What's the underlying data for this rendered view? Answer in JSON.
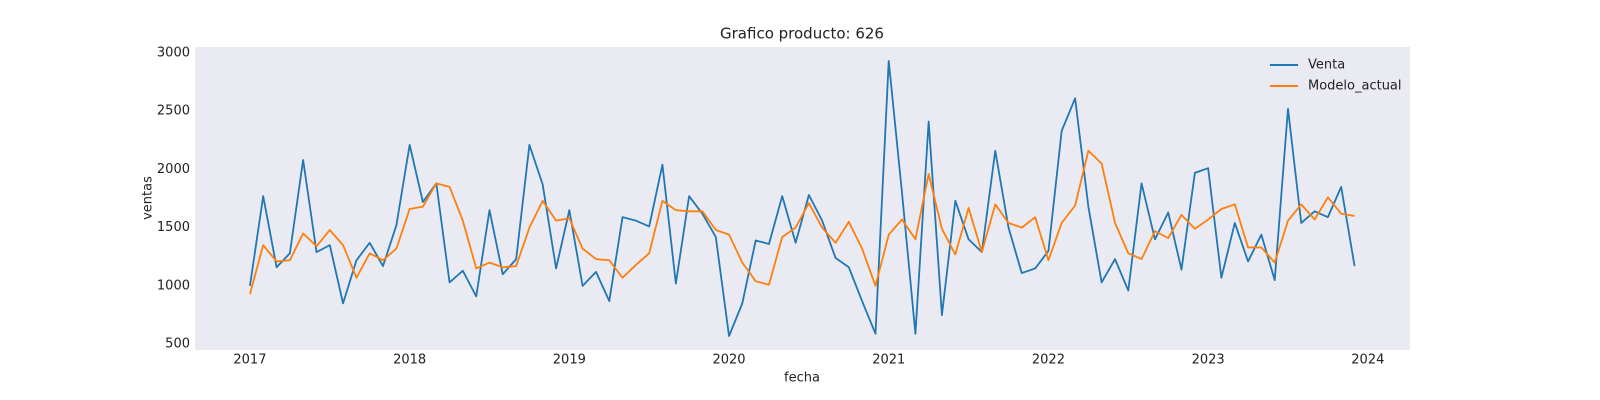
{
  "chart_data": {
    "type": "line",
    "title": "Grafico producto: 626",
    "xlabel": "fecha",
    "ylabel": "ventas",
    "x": [
      2017.0,
      2017.083,
      2017.167,
      2017.25,
      2017.333,
      2017.417,
      2017.5,
      2017.583,
      2017.667,
      2017.75,
      2017.833,
      2017.917,
      2018.0,
      2018.083,
      2018.167,
      2018.25,
      2018.333,
      2018.417,
      2018.5,
      2018.583,
      2018.667,
      2018.75,
      2018.833,
      2018.917,
      2019.0,
      2019.083,
      2019.167,
      2019.25,
      2019.333,
      2019.417,
      2019.5,
      2019.583,
      2019.667,
      2019.75,
      2019.833,
      2019.917,
      2020.0,
      2020.083,
      2020.167,
      2020.25,
      2020.333,
      2020.417,
      2020.5,
      2020.583,
      2020.667,
      2020.75,
      2020.833,
      2020.917,
      2021.0,
      2021.083,
      2021.167,
      2021.25,
      2021.333,
      2021.417,
      2021.5,
      2021.583,
      2021.667,
      2021.75,
      2021.833,
      2021.917,
      2022.0,
      2022.083,
      2022.167,
      2022.25,
      2022.333,
      2022.417,
      2022.5,
      2022.583,
      2022.667,
      2022.75,
      2022.833,
      2022.917,
      2023.0,
      2023.083,
      2023.167,
      2023.25,
      2023.333,
      2023.417,
      2023.5,
      2023.583,
      2023.667,
      2023.75,
      2023.833,
      2023.917
    ],
    "series": [
      {
        "name": "Venta",
        "color": "#1f77b4",
        "values": [
          1000,
          1770,
          1160,
          1280,
          2080,
          1290,
          1350,
          850,
          1220,
          1370,
          1170,
          1520,
          2210,
          1720,
          1880,
          1030,
          1130,
          910,
          1650,
          1100,
          1230,
          2210,
          1870,
          1150,
          1650,
          1000,
          1120,
          870,
          1590,
          1560,
          1510,
          2040,
          1020,
          1770,
          1620,
          1420,
          570,
          850,
          1390,
          1360,
          1770,
          1370,
          1780,
          1560,
          1240,
          1160,
          870,
          590,
          2930,
          1800,
          590,
          2410,
          750,
          1730,
          1400,
          1290,
          2160,
          1500,
          1110,
          1150,
          1300,
          2330,
          2610,
          1680,
          1030,
          1230,
          960,
          1880,
          1400,
          1630,
          1140,
          1970,
          2010,
          1070,
          1540,
          1210,
          1440,
          1050,
          2520,
          1540,
          1640,
          1590,
          1850,
          1170
        ]
      },
      {
        "name": "Modelo_actual",
        "color": "#ff7f0e",
        "values": [
          930,
          1350,
          1210,
          1220,
          1450,
          1340,
          1480,
          1350,
          1070,
          1280,
          1220,
          1320,
          1660,
          1680,
          1880,
          1850,
          1560,
          1150,
          1200,
          1160,
          1170,
          1500,
          1730,
          1560,
          1580,
          1320,
          1230,
          1220,
          1070,
          1180,
          1280,
          1730,
          1650,
          1640,
          1640,
          1480,
          1440,
          1200,
          1040,
          1010,
          1420,
          1500,
          1710,
          1500,
          1370,
          1550,
          1320,
          1000,
          1440,
          1570,
          1400,
          1960,
          1490,
          1270,
          1670,
          1290,
          1700,
          1540,
          1500,
          1590,
          1220,
          1540,
          1690,
          2160,
          2050,
          1540,
          1280,
          1230,
          1470,
          1410,
          1610,
          1490,
          1570,
          1660,
          1700,
          1330,
          1330,
          1200,
          1560,
          1700,
          1570,
          1760,
          1620,
          1600
        ]
      }
    ],
    "xlim": [
      2016.656,
      2024.264
    ],
    "xticks": [
      2017,
      2018,
      2019,
      2020,
      2021,
      2022,
      2023,
      2024
    ],
    "ylim": [
      450,
      3050
    ],
    "yticks": [
      500,
      1000,
      1500,
      2000,
      2500,
      3000
    ],
    "grid": false,
    "legend": "upper right"
  }
}
